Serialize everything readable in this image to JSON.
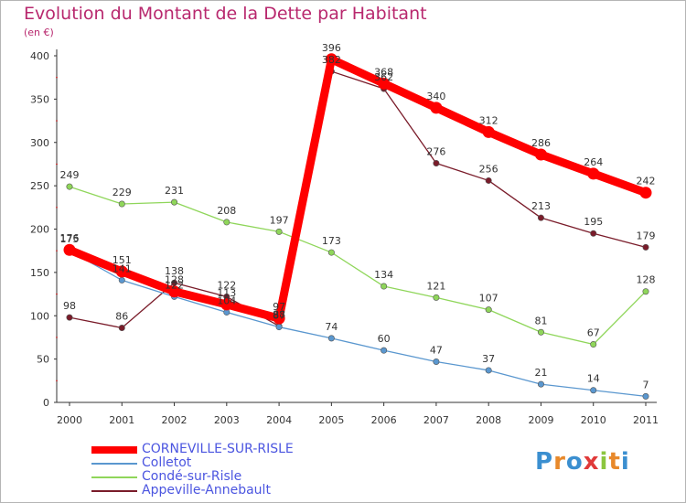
{
  "title": "Evolution du Montant de la Dette par Habitant",
  "unit": "(en €)",
  "logo": "Proxiti",
  "chart_data": {
    "type": "line",
    "title": "Evolution du Montant de la Dette par Habitant",
    "ylabel": "(en €)",
    "xlabel": "",
    "x": [
      "2000",
      "2001",
      "2002",
      "2003",
      "2004",
      "2005",
      "2006",
      "2007",
      "2008",
      "2009",
      "2010",
      "2011"
    ],
    "yticks": [
      0,
      50,
      100,
      150,
      200,
      250,
      300,
      350,
      400
    ],
    "ylim": [
      0,
      400
    ],
    "grid": false,
    "legend_position": "bottom-left",
    "series": [
      {
        "name": "Appeville-Annebault",
        "color": "#7a1c2a",
        "values": [
          98,
          86,
          138,
          122,
          88,
          382,
          362,
          276,
          256,
          213,
          195,
          179
        ],
        "labels": [
          "98",
          "86",
          "138",
          "122",
          "88",
          "382",
          "362",
          "276",
          "256",
          "213",
          "195",
          "179"
        ]
      },
      {
        "name": "Condé-sur-Risle",
        "color": "#8fd65a",
        "values": [
          249,
          229,
          231,
          208,
          197,
          173,
          134,
          121,
          107,
          81,
          67,
          128
        ],
        "labels": [
          "249",
          "229",
          "231",
          "208",
          "197",
          "173",
          "134",
          "121",
          "107",
          "81",
          "67",
          "128"
        ]
      },
      {
        "name": "Colletot",
        "color": "#5a97cf",
        "values": [
          175,
          141,
          122,
          104,
          87,
          74,
          60,
          47,
          37,
          21,
          14,
          7
        ],
        "labels": [
          "175",
          "141",
          "122",
          "104",
          "87",
          "74",
          "60",
          "47",
          "37",
          "21",
          "14",
          "7"
        ]
      },
      {
        "name": "CORNEVILLE-SUR-RISLE",
        "color": "#ff0000",
        "values": [
          176,
          151,
          128,
          113,
          97,
          396,
          368,
          340,
          312,
          286,
          264,
          242
        ],
        "labels": [
          "176",
          "151",
          "128",
          "113",
          "97",
          "396",
          "368",
          "340",
          "312",
          "286",
          "264",
          "242"
        ]
      }
    ]
  },
  "legend": [
    {
      "name": "CORNEVILLE-SUR-RISLE",
      "color": "#ff0000",
      "text_color": "#4b55e0"
    },
    {
      "name": "Colletot",
      "color": "#5a97cf",
      "text_color": "#4b55e0"
    },
    {
      "name": "Condé-sur-Risle",
      "color": "#8fd65a",
      "text_color": "#4b55e0"
    },
    {
      "name": "Appeville-Annebault",
      "color": "#7a1c2a",
      "text_color": "#4b55e0"
    }
  ]
}
